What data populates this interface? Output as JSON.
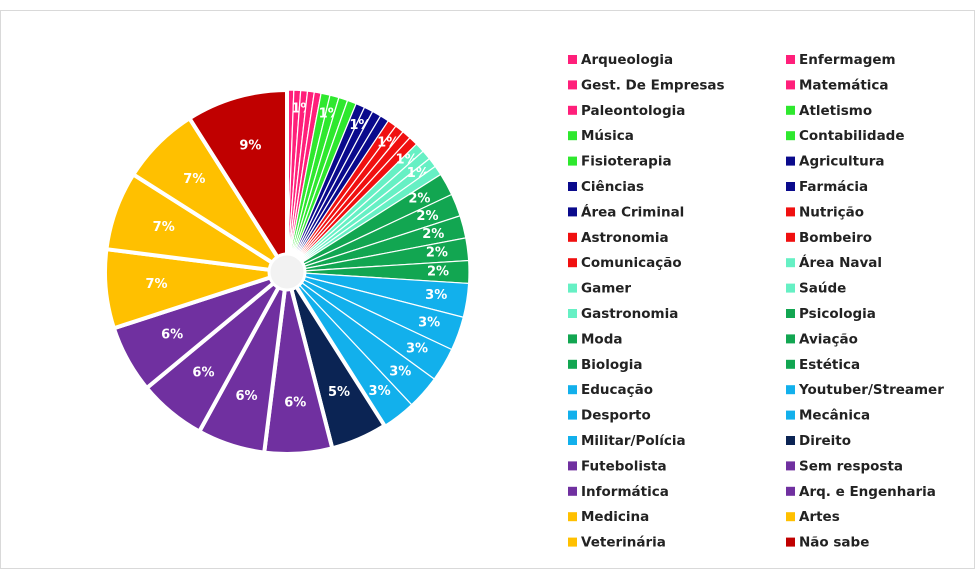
{
  "chart_data": {
    "type": "pie",
    "categories": [
      "Arqueologia",
      "Enfermagem",
      "Gest. De Empresas",
      "Matemática",
      "Paleontologia",
      "Atletismo",
      "Música",
      "Contabilidade",
      "Fisioterapia",
      "Agricultura",
      "Ciências",
      "Farmácia",
      "Área Criminal",
      "Nutrição",
      "Astronomia",
      "Bombeiro",
      "Comunicação",
      "Área Naval",
      "Gamer",
      "Saúde",
      "Gastronomia",
      "Psicologia",
      "Moda",
      "Aviação",
      "Biologia",
      "Estética",
      "Educação",
      "Youtuber/Streamer",
      "Desporto",
      "Mecânica",
      "Militar/Polícia",
      "Direito",
      "Futebolista",
      "Sem resposta",
      "Informática",
      "Arq. e Engenharia",
      "Medicina",
      "Artes",
      "Veterinária",
      "Não sabe"
    ],
    "values": [
      0.6,
      0.6,
      0.6,
      0.6,
      0.6,
      0.8,
      0.8,
      0.8,
      0.8,
      0.8,
      0.8,
      0.8,
      0.8,
      0.8,
      0.8,
      0.8,
      0.8,
      0.85,
      0.85,
      0.85,
      0.85,
      2,
      2,
      2,
      2,
      2,
      3,
      3,
      3,
      3,
      3,
      5,
      6,
      6,
      6,
      6,
      7,
      7,
      7,
      9
    ],
    "value_labels": [
      null,
      null,
      "1%",
      null,
      null,
      null,
      "1%",
      null,
      null,
      null,
      "1%",
      null,
      null,
      null,
      "1%",
      null,
      null,
      "1%",
      null,
      "1%",
      null,
      "2%",
      "2%",
      "2%",
      "2%",
      "2%",
      "3%",
      "3%",
      "3%",
      "3%",
      "3%",
      "5%",
      "6%",
      "6%",
      "6%",
      "6%",
      "7%",
      "7%",
      "7%",
      "9%"
    ],
    "colors": [
      "#ff1f7a",
      "#ff1f7a",
      "#ff1f7a",
      "#ff1f7a",
      "#ff1f7a",
      "#2ee82e",
      "#2ee82e",
      "#2ee82e",
      "#2ee82e",
      "#0a0a8c",
      "#0a0a8c",
      "#0a0a8c",
      "#0a0a8c",
      "#f01010",
      "#f01010",
      "#f01010",
      "#f01010",
      "#66f0c4",
      "#66f0c4",
      "#66f0c4",
      "#66f0c4",
      "#12a651",
      "#12a651",
      "#12a651",
      "#12a651",
      "#12a651",
      "#12b0ec",
      "#12b0ec",
      "#12b0ec",
      "#12b0ec",
      "#12b0ec",
      "#0b2454",
      "#7030a0",
      "#7030a0",
      "#7030a0",
      "#7030a0",
      "#ffc000",
      "#ffc000",
      "#ffc000",
      "#c00000"
    ],
    "legend": "right"
  }
}
